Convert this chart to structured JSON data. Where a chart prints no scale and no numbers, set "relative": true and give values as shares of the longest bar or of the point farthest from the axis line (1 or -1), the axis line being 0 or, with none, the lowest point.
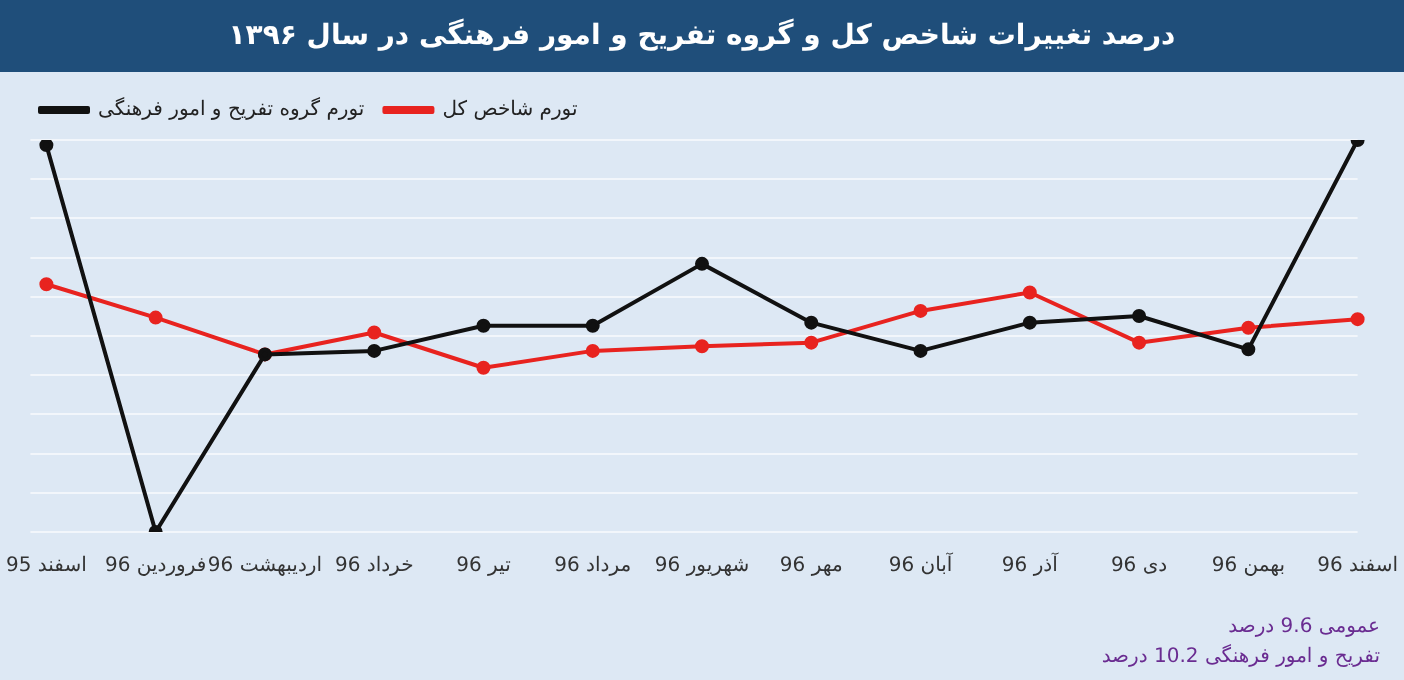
{
  "chart_data": {
    "type": "line",
    "title": "درصد تغییرات شاخص کل و گروه تفریح و امور فرهنگی در سال ۱۳۹۶",
    "categories": [
      "اسفند 95",
      "فروردین 96",
      "اردیبهشت 96",
      "خرداد 96",
      "تیر 96",
      "مرداد 96",
      "شهریور 96",
      "مهر 96",
      "آبان 96",
      "آذر 96",
      "دی 96",
      "بهمن 96",
      "اسفند 96"
    ],
    "relative": true,
    "legend": "top left",
    "marker": "circle",
    "grid": "y",
    "series": [
      {
        "name": "تورم گروه تفریح و امور فرهنگی",
        "color": "#111111",
        "values": [
          0.987,
          0,
          0.453,
          0.462,
          0.526,
          0.526,
          0.684,
          0.534,
          0.462,
          0.534,
          0.551,
          0.466,
          1
        ]
      },
      {
        "name": "تورم شاخص کل",
        "color": "#e8231f",
        "values": [
          0.632,
          0.547,
          0.453,
          0.509,
          0.419,
          0.462,
          0.474,
          0.483,
          0.564,
          0.611,
          0.483,
          0.521,
          0.543
        ]
      }
    ],
    "annotations": [
      "عمومی 9.6 درصد",
      "تفریح و امور فرهنگی 10.2 درصد"
    ]
  }
}
